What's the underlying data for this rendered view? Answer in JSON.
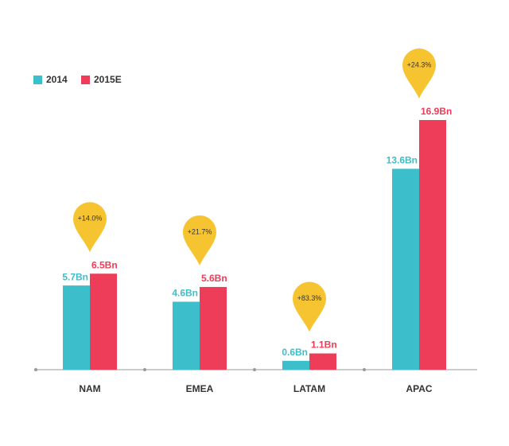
{
  "chart_data": {
    "type": "bar",
    "categories": [
      "NAM",
      "EMEA",
      "LATAM",
      "APAC"
    ],
    "series": [
      {
        "name": "2014",
        "color": "#3dbecb",
        "values": [
          5.7,
          4.6,
          0.6,
          13.6
        ],
        "value_labels": [
          "5.7Bn",
          "4.6Bn",
          "0.6Bn",
          "13.6Bn"
        ]
      },
      {
        "name": "2015E",
        "color": "#ee3d58",
        "values": [
          6.5,
          5.6,
          1.1,
          16.9
        ],
        "value_labels": [
          "6.5Bn",
          "5.6Bn",
          "1.1Bn",
          "16.9Bn"
        ]
      }
    ],
    "annotations": [
      "+14.0%",
      "+21.7%",
      "+83.3%",
      "+24.3%"
    ],
    "annotation_color": "#f7c431"
  }
}
